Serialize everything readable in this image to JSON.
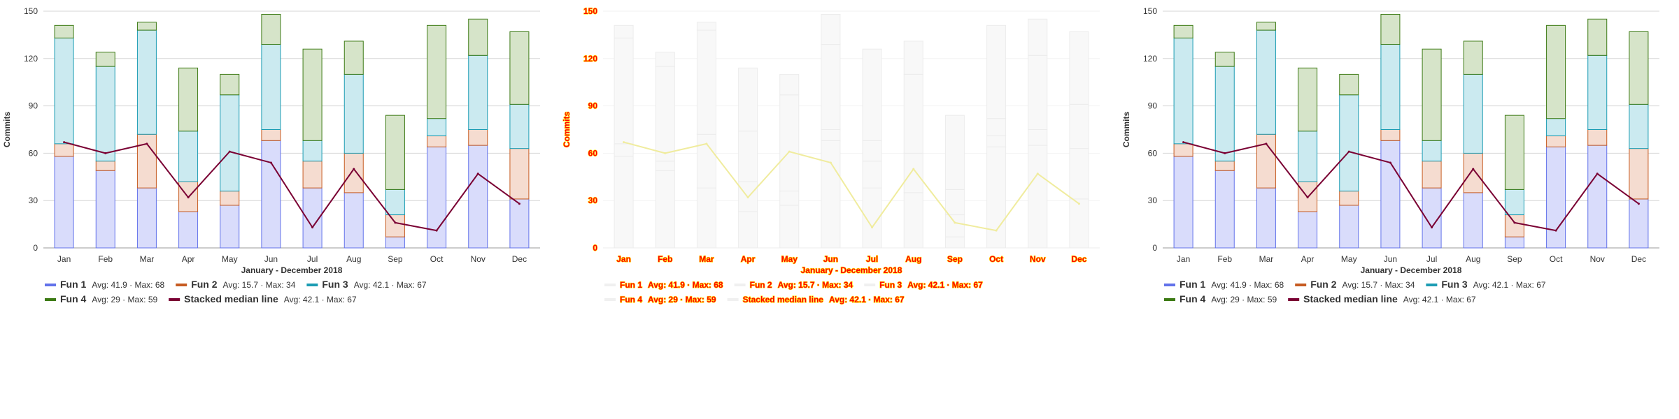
{
  "chart_data": {
    "type": "bar",
    "stacked": true,
    "title": "",
    "xlabel": "January - December 2018",
    "ylabel": "Commits",
    "ylim": [
      0,
      150
    ],
    "yticks": [
      0,
      30,
      60,
      90,
      120,
      150
    ],
    "grid": true,
    "legend_position": "bottom",
    "categories": [
      "Jan",
      "Feb",
      "Mar",
      "Apr",
      "May",
      "Jun",
      "Jul",
      "Aug",
      "Sep",
      "Oct",
      "Nov",
      "Dec"
    ],
    "series": [
      {
        "name": "Fun 1",
        "kind": "bar",
        "color": "#6272ea",
        "fill": "#d9dcfb",
        "stats": "Avg: 41.9 · Max: 68",
        "values": [
          58,
          49,
          38,
          23,
          27,
          68,
          38,
          35,
          7,
          64,
          65,
          31
        ]
      },
      {
        "name": "Fun 2",
        "kind": "bar",
        "color": "#c65b21",
        "fill": "#f5dcd0",
        "stats": "Avg: 15.7 · Max: 34",
        "values": [
          8,
          6,
          34,
          19,
          9,
          7,
          17,
          25,
          14,
          7,
          10,
          32
        ]
      },
      {
        "name": "Fun 3",
        "kind": "bar",
        "color": "#1c9cb3",
        "fill": "#cbeaf0",
        "stats": "Avg: 42.1 · Max: 67",
        "values": [
          67,
          60,
          66,
          32,
          61,
          54,
          13,
          50,
          16,
          11,
          47,
          28
        ]
      },
      {
        "name": "Fun 4",
        "kind": "bar",
        "color": "#3c7a14",
        "fill": "#d6e4c9",
        "stats": "Avg: 29 · Max: 59",
        "values": [
          8,
          9,
          5,
          40,
          13,
          19,
          58,
          21,
          47,
          59,
          23,
          46
        ]
      },
      {
        "name": "Stacked median line",
        "kind": "line",
        "color": "#7a0033",
        "stats": "Avg: 42.1 · Max: 67",
        "values": [
          67,
          60,
          66,
          32,
          61,
          54,
          13,
          50,
          16,
          11,
          47,
          28
        ]
      }
    ]
  }
}
